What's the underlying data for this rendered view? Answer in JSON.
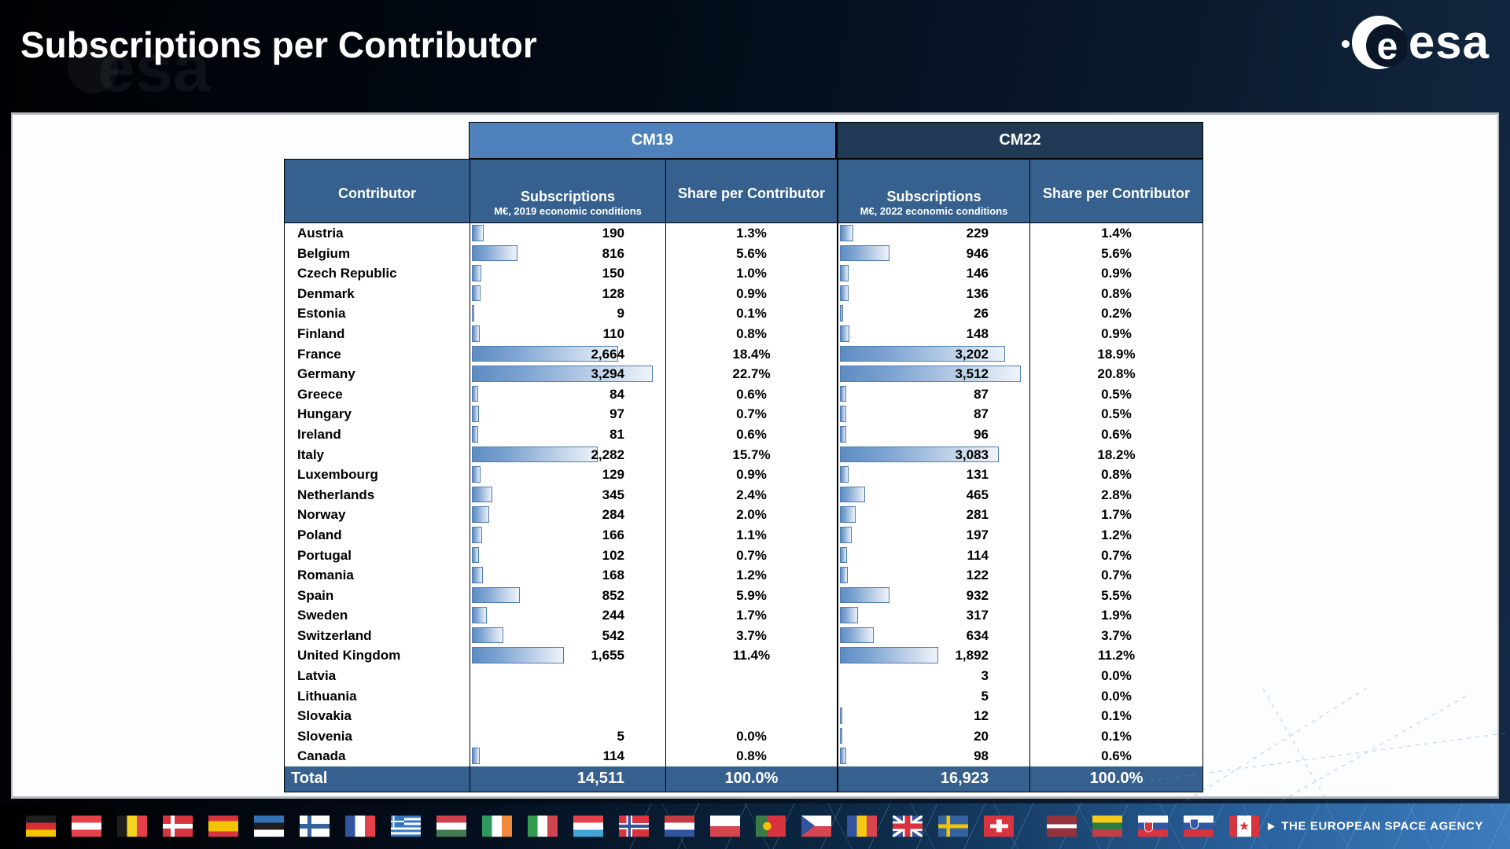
{
  "title": "Subscriptions per Contributor",
  "watermark_text": "esa",
  "brand": {
    "logo_text": "esa",
    "tagline": "THE EUROPEAN SPACE AGENCY"
  },
  "table": {
    "groups": [
      {
        "label": "CM19"
      },
      {
        "label": "CM22"
      }
    ],
    "headers": {
      "contributor": "Contributor",
      "subscriptions": "Subscriptions",
      "subs_note_cm19": "M€, 2019 economic conditions",
      "subs_note_cm22": "M€, 2022 economic conditions",
      "share": "Share per Contributor"
    },
    "rows": [
      {
        "contributor": "Austria",
        "subs_cm19": "190",
        "share_cm19": "1.3%",
        "subs_cm22": "229",
        "share_cm22": "1.4%"
      },
      {
        "contributor": "Belgium",
        "subs_cm19": "816",
        "share_cm19": "5.6%",
        "subs_cm22": "946",
        "share_cm22": "5.6%"
      },
      {
        "contributor": "Czech Republic",
        "subs_cm19": "150",
        "share_cm19": "1.0%",
        "subs_cm22": "146",
        "share_cm22": "0.9%"
      },
      {
        "contributor": "Denmark",
        "subs_cm19": "128",
        "share_cm19": "0.9%",
        "subs_cm22": "136",
        "share_cm22": "0.8%"
      },
      {
        "contributor": "Estonia",
        "subs_cm19": "9",
        "share_cm19": "0.1%",
        "subs_cm22": "26",
        "share_cm22": "0.2%"
      },
      {
        "contributor": "Finland",
        "subs_cm19": "110",
        "share_cm19": "0.8%",
        "subs_cm22": "148",
        "share_cm22": "0.9%"
      },
      {
        "contributor": "France",
        "subs_cm19": "2,664",
        "share_cm19": "18.4%",
        "subs_cm22": "3,202",
        "share_cm22": "18.9%"
      },
      {
        "contributor": "Germany",
        "subs_cm19": "3,294",
        "share_cm19": "22.7%",
        "subs_cm22": "3,512",
        "share_cm22": "20.8%"
      },
      {
        "contributor": "Greece",
        "subs_cm19": "84",
        "share_cm19": "0.6%",
        "subs_cm22": "87",
        "share_cm22": "0.5%"
      },
      {
        "contributor": "Hungary",
        "subs_cm19": "97",
        "share_cm19": "0.7%",
        "subs_cm22": "87",
        "share_cm22": "0.5%"
      },
      {
        "contributor": "Ireland",
        "subs_cm19": "81",
        "share_cm19": "0.6%",
        "subs_cm22": "96",
        "share_cm22": "0.6%"
      },
      {
        "contributor": "Italy",
        "subs_cm19": "2,282",
        "share_cm19": "15.7%",
        "subs_cm22": "3,083",
        "share_cm22": "18.2%"
      },
      {
        "contributor": "Luxembourg",
        "subs_cm19": "129",
        "share_cm19": "0.9%",
        "subs_cm22": "131",
        "share_cm22": "0.8%"
      },
      {
        "contributor": "Netherlands",
        "subs_cm19": "345",
        "share_cm19": "2.4%",
        "subs_cm22": "465",
        "share_cm22": "2.8%"
      },
      {
        "contributor": "Norway",
        "subs_cm19": "284",
        "share_cm19": "2.0%",
        "subs_cm22": "281",
        "share_cm22": "1.7%"
      },
      {
        "contributor": "Poland",
        "subs_cm19": "166",
        "share_cm19": "1.1%",
        "subs_cm22": "197",
        "share_cm22": "1.2%"
      },
      {
        "contributor": "Portugal",
        "subs_cm19": "102",
        "share_cm19": "0.7%",
        "subs_cm22": "114",
        "share_cm22": "0.7%"
      },
      {
        "contributor": "Romania",
        "subs_cm19": "168",
        "share_cm19": "1.2%",
        "subs_cm22": "122",
        "share_cm22": "0.7%"
      },
      {
        "contributor": "Spain",
        "subs_cm19": "852",
        "share_cm19": "5.9%",
        "subs_cm22": "932",
        "share_cm22": "5.5%"
      },
      {
        "contributor": "Sweden",
        "subs_cm19": "244",
        "share_cm19": "1.7%",
        "subs_cm22": "317",
        "share_cm22": "1.9%"
      },
      {
        "contributor": "Switzerland",
        "subs_cm19": "542",
        "share_cm19": "3.7%",
        "subs_cm22": "634",
        "share_cm22": "3.7%"
      },
      {
        "contributor": "United Kingdom",
        "subs_cm19": "1,655",
        "share_cm19": "11.4%",
        "subs_cm22": "1,892",
        "share_cm22": "11.2%"
      },
      {
        "contributor": "Latvia",
        "subs_cm19": "",
        "share_cm19": "",
        "subs_cm22": "3",
        "share_cm22": "0.0%"
      },
      {
        "contributor": "Lithuania",
        "subs_cm19": "",
        "share_cm19": "",
        "subs_cm22": "5",
        "share_cm22": "0.0%"
      },
      {
        "contributor": "Slovakia",
        "subs_cm19": "",
        "share_cm19": "",
        "subs_cm22": "12",
        "share_cm22": "0.1%"
      },
      {
        "contributor": "Slovenia",
        "subs_cm19": "5",
        "share_cm19": "0.0%",
        "subs_cm22": "20",
        "share_cm22": "0.1%"
      },
      {
        "contributor": "Canada",
        "subs_cm19": "114",
        "share_cm19": "0.8%",
        "subs_cm22": "98",
        "share_cm22": "0.6%"
      }
    ],
    "total": {
      "label": "Total",
      "subs_cm19": "14,511",
      "share_cm19": "100.0%",
      "subs_cm22": "16,923",
      "share_cm22": "100.0%"
    }
  },
  "footer": {
    "flags": [
      {
        "id": "de",
        "country": "Germany"
      },
      {
        "id": "at",
        "country": "Austria"
      },
      {
        "id": "be",
        "country": "Belgium"
      },
      {
        "id": "dk",
        "country": "Denmark"
      },
      {
        "id": "es",
        "country": "Spain"
      },
      {
        "id": "ee",
        "country": "Estonia"
      },
      {
        "id": "fi",
        "country": "Finland"
      },
      {
        "id": "fr",
        "country": "France"
      },
      {
        "id": "gr",
        "country": "Greece"
      },
      {
        "id": "hu",
        "country": "Hungary"
      },
      {
        "id": "ie",
        "country": "Ireland"
      },
      {
        "id": "it",
        "country": "Italy"
      },
      {
        "id": "lu",
        "country": "Luxembourg"
      },
      {
        "id": "no",
        "country": "Norway"
      },
      {
        "id": "nl",
        "country": "Netherlands"
      },
      {
        "id": "pl",
        "country": "Poland"
      },
      {
        "id": "pt",
        "country": "Portugal"
      },
      {
        "id": "cz",
        "country": "Czech Republic"
      },
      {
        "id": "ro",
        "country": "Romania"
      },
      {
        "id": "gb",
        "country": "United Kingdom"
      },
      {
        "id": "se",
        "country": "Sweden"
      },
      {
        "id": "ch",
        "country": "Switzerland"
      },
      {
        "id": "lv",
        "country": "Latvia"
      },
      {
        "id": "lt",
        "country": "Lithuania"
      },
      {
        "id": "sk",
        "country": "Slovakia"
      },
      {
        "id": "si",
        "country": "Slovenia"
      },
      {
        "id": "ca",
        "country": "Canada"
      }
    ]
  },
  "colors": {
    "cm19_header_bg": "#4f81bd",
    "cm22_header_bg": "#203a55",
    "column_header_bg": "#36618f",
    "total_row_bg": "#36618f",
    "bar_border": "#4d7ab1",
    "bar_fill_start": "#5d8cc3",
    "bar_fill_end": "#eef3fa",
    "body_text": "#000000",
    "header_text": "#ffffff"
  }
}
